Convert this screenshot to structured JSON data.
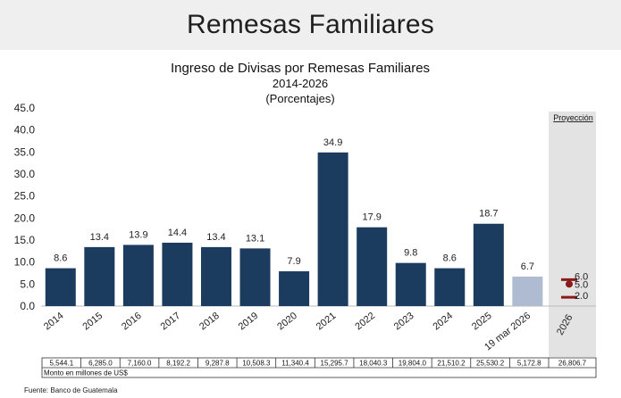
{
  "banner": {
    "title": "Remesas Familiares"
  },
  "chart_data": {
    "type": "bar",
    "title": "Ingreso de Divisas por Remesas Familiares",
    "subtitle": "2014-2026",
    "units": "(Porcentajes)",
    "ylim": [
      0,
      45
    ],
    "yticks": [
      "0.0",
      "5.0",
      "10.0",
      "15.0",
      "20.0",
      "25.0",
      "30.0",
      "35.0",
      "40.0",
      "45.0"
    ],
    "categories": [
      "2014",
      "2015",
      "2016",
      "2017",
      "2018",
      "2019",
      "2020",
      "2021",
      "2022",
      "2023",
      "2024",
      "2025",
      "19 mar 2026"
    ],
    "values": [
      8.6,
      13.4,
      13.9,
      14.4,
      13.4,
      13.1,
      7.9,
      34.9,
      17.9,
      9.8,
      8.6,
      18.7,
      6.7
    ],
    "value_labels": [
      "8.6",
      "13.4",
      "13.9",
      "14.4",
      "13.4",
      "13.1",
      "7.9",
      "34.9",
      "17.9",
      "9.8",
      "8.6",
      "18.7",
      "6.7"
    ],
    "amounts": [
      "5,544.1",
      "6,285.0",
      "7,160.0",
      "8,192.2",
      "9,287.8",
      "10,508.3",
      "11,340.4",
      "15,295.7",
      "18,040.3",
      "19,804.0",
      "21,510.2",
      "25,530.2",
      "5,172.8"
    ],
    "bar_color": "#1b3b5f",
    "partial_bar_color": "#aebbd0",
    "projection": {
      "header": "Proyección",
      "category": "2026",
      "high": 6.0,
      "mid": 5.0,
      "low": 2.0,
      "high_label": "6.0",
      "mid_label": "5.0",
      "low_label": "2.0",
      "amount": "26,806.7",
      "marker_color": "#8b1a1a",
      "shade_color": "#e3e3e3"
    },
    "amount_note": "Monto en millones de US$",
    "source": "Fuente: Banco de Guatemala"
  }
}
